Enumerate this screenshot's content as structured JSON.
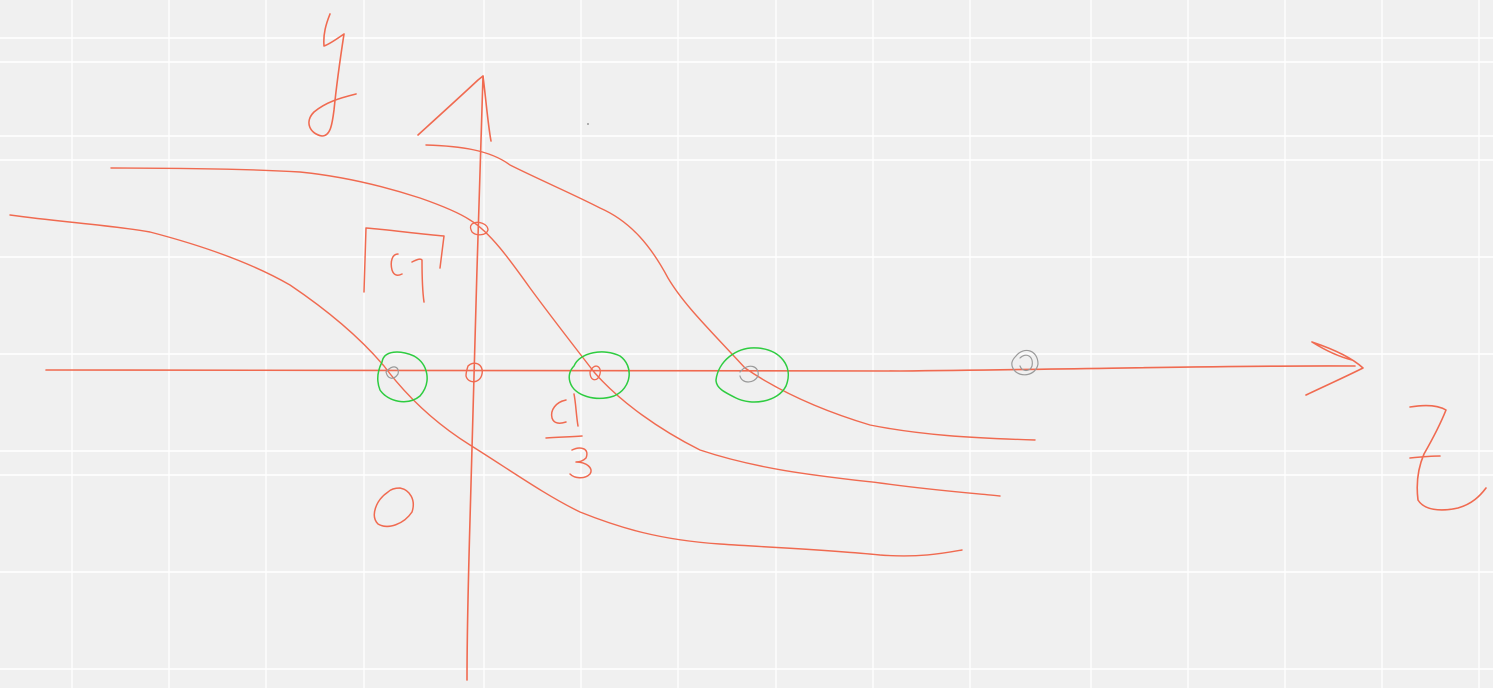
{
  "sketch": {
    "colors": {
      "background": "#f0f0f0",
      "grid": "#ffffff",
      "ink": "#f06a50",
      "highlight": "#2ecc40",
      "pencil": "#9a9a9a"
    },
    "handwritten_glyphs": [
      "y",
      "z",
      "[c_1]",
      "c_1/3",
      "0"
    ],
    "marked_points": [
      {
        "name": "marker-curve-left-crossing",
        "style": "green-circle"
      },
      {
        "name": "marker-origin",
        "style": "small-ink-circle"
      },
      {
        "name": "marker-curve-middle-crossing",
        "style": "green-circle"
      },
      {
        "name": "marker-curve-right-crossing",
        "style": "green-circle"
      },
      {
        "name": "marker-far-right",
        "style": "grey-pencil-circle"
      },
      {
        "name": "marker-vertical-axis-crossing",
        "style": "small-ink-circle"
      }
    ]
  }
}
